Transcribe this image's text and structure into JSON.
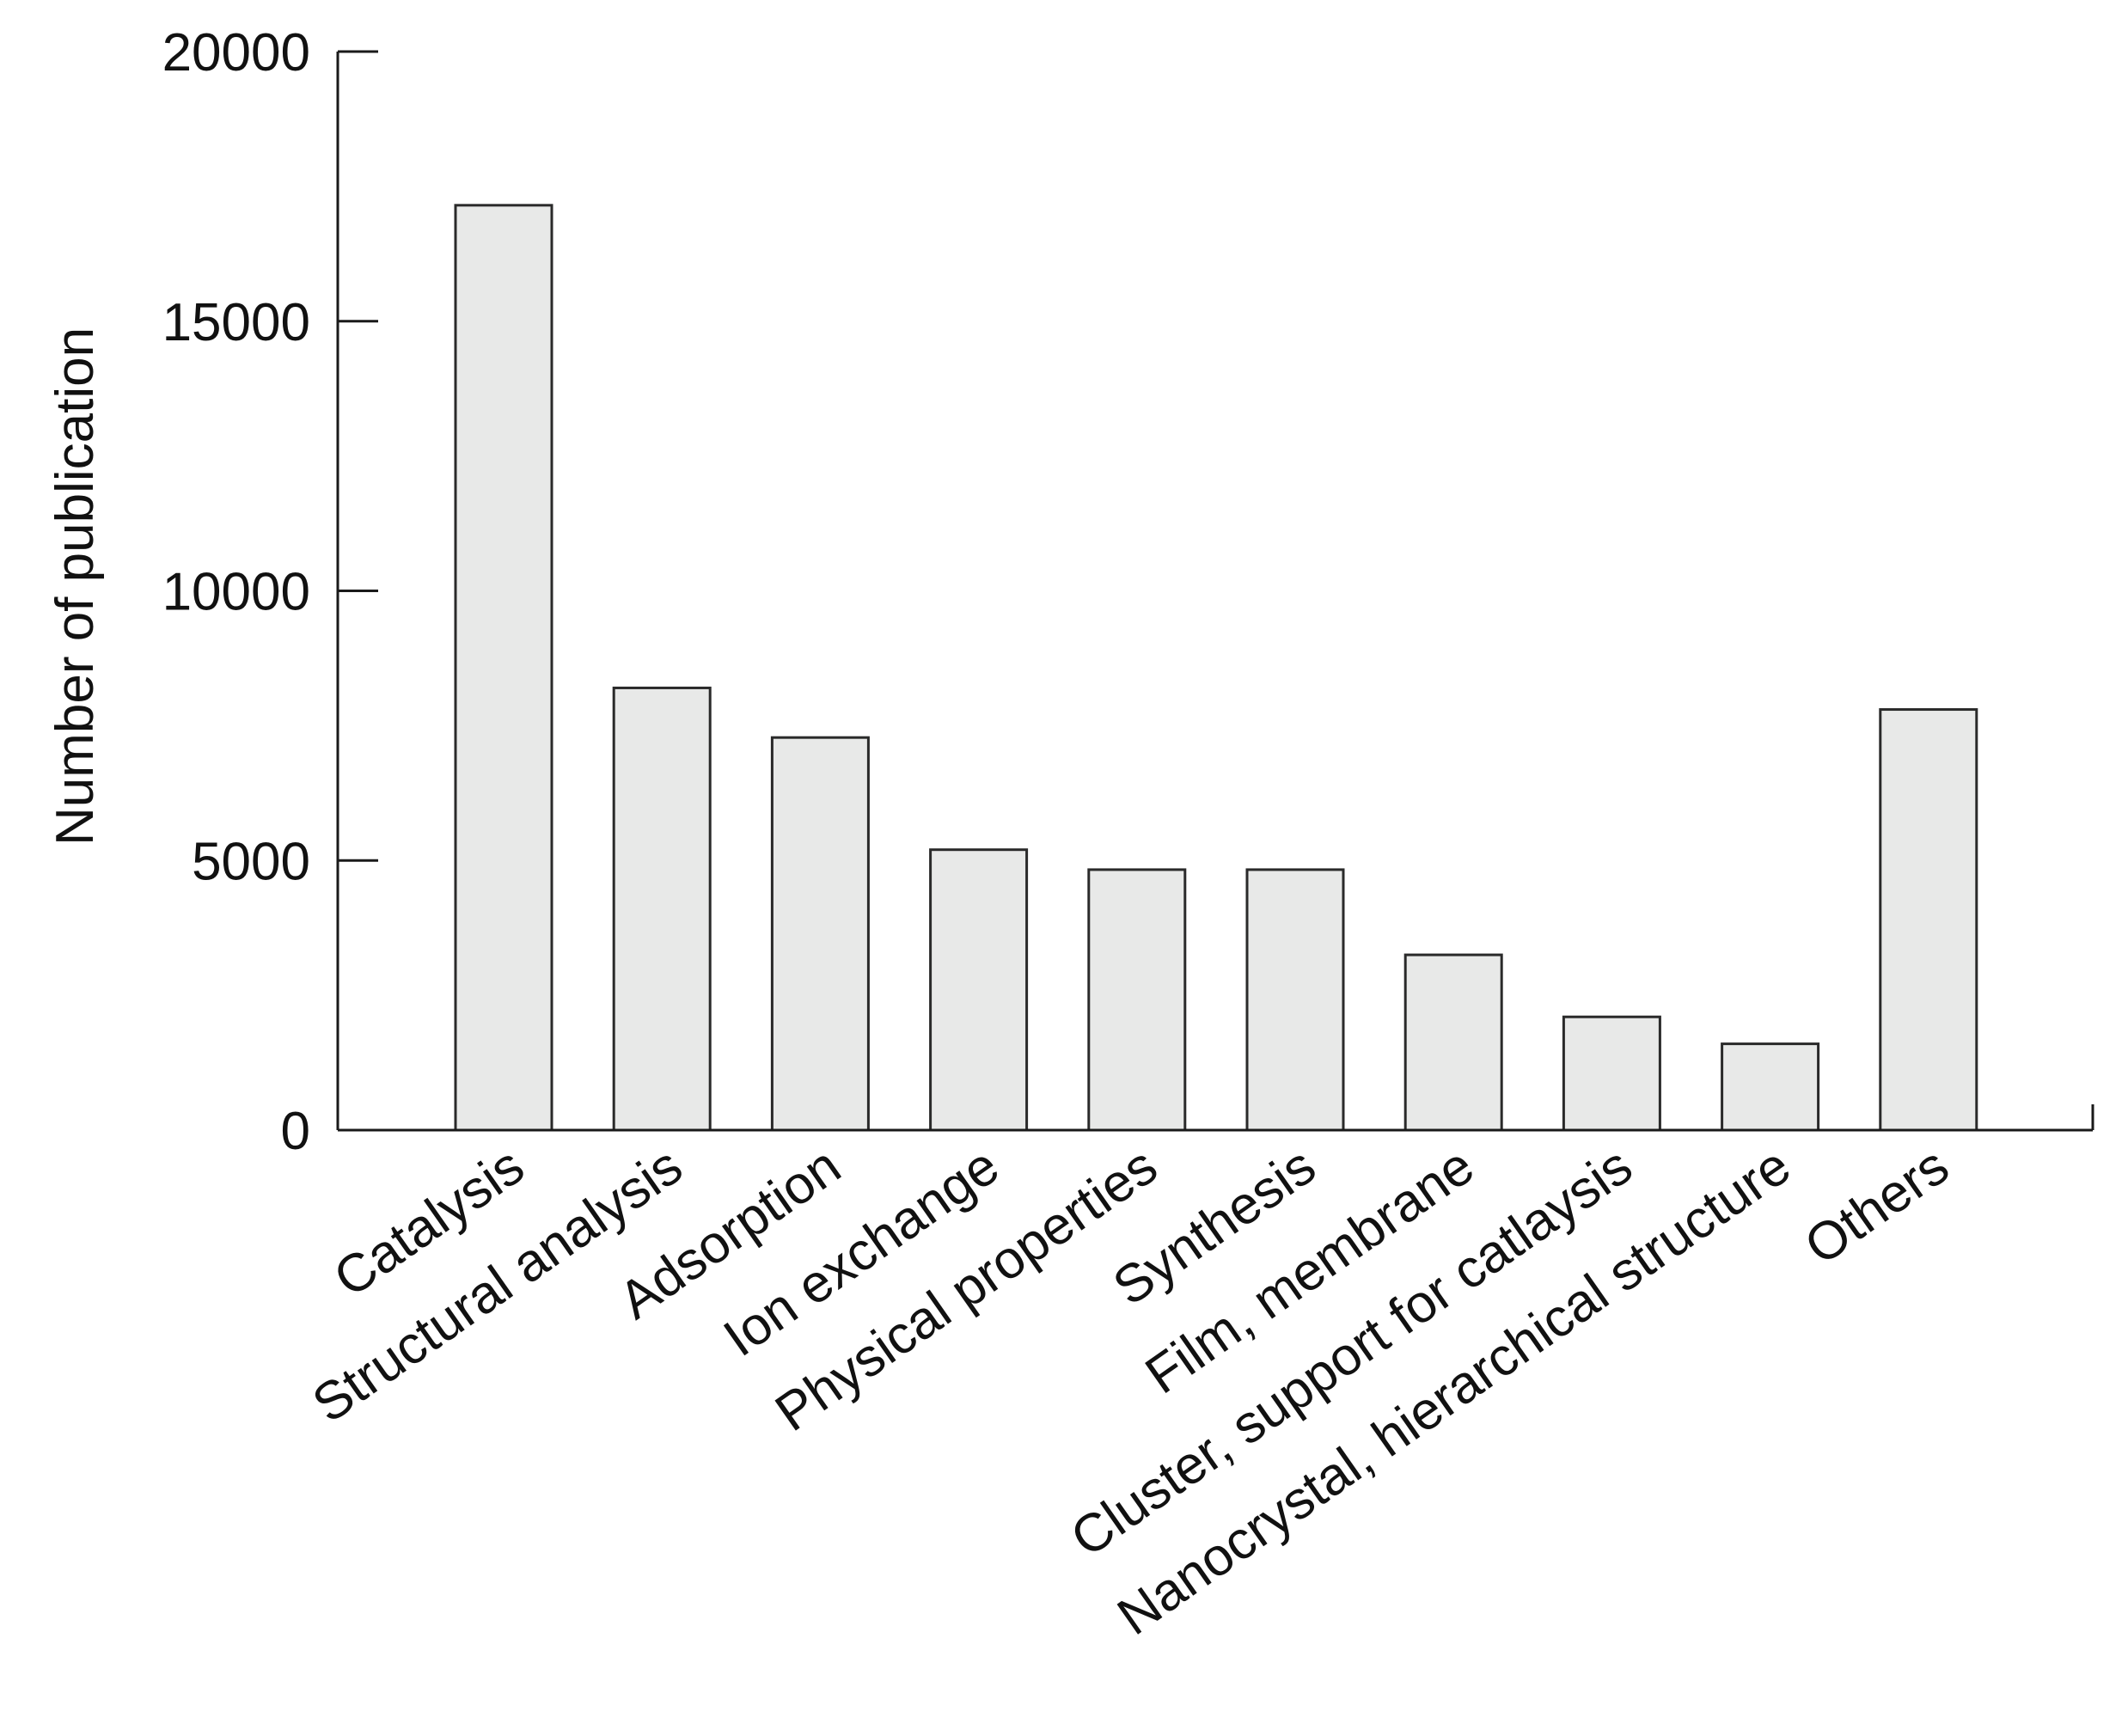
{
  "chart_data": {
    "type": "bar",
    "title": "",
    "xlabel": "",
    "ylabel": "Number of publication",
    "ylim": [
      0,
      20000
    ],
    "yticks": [
      0,
      5000,
      10000,
      15000,
      20000
    ],
    "categories": [
      "Catalysis",
      "Structural analysis",
      "Adsorption",
      "Ion exchange",
      "Physical properties",
      "Synthesis",
      "Film, membrane",
      "Cluster, support for catlaysis",
      "Nanocrystal, hierarchical structure",
      "Others"
    ],
    "values": [
      17150,
      8200,
      7280,
      5200,
      4830,
      4830,
      3250,
      2100,
      1600,
      7800
    ],
    "bar_color": "#e8e9e8",
    "edge_color": "#2a2a2a",
    "grid": false,
    "legend": "none"
  }
}
